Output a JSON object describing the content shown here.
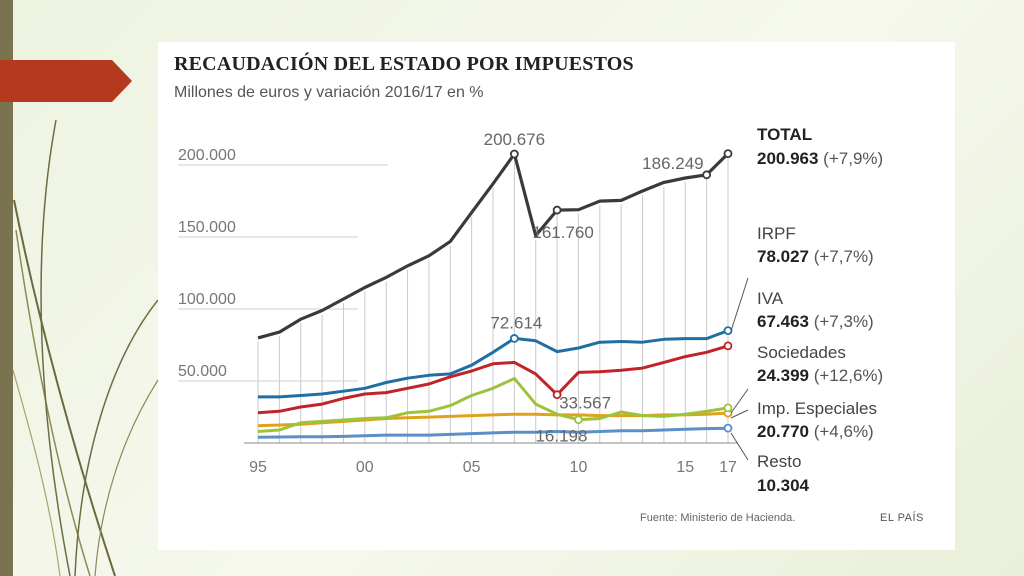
{
  "header": {
    "title": "RECAUDACIÓN DEL ESTADO POR IMPUESTOS",
    "subtitle": "Millones de euros y variación 2016/17 en %"
  },
  "footer": {
    "source": "Fuente: Ministerio de Hacienda.",
    "brand": "EL PAÍS"
  },
  "colors": {
    "total": "#3a3a3a",
    "irpf": "#1f6fa3",
    "iva": "#c0242a",
    "sociedades": "#9cc43a",
    "especiales": "#e0a21b",
    "resto": "#5b8fc7",
    "accent": "#b5391f"
  },
  "chart_data": {
    "type": "line",
    "title": "RECAUDACIÓN DEL ESTADO POR IMPUESTOS",
    "subtitle": "Millones de euros y variación 2016/17 en %",
    "x": [
      1995,
      1996,
      1997,
      1998,
      1999,
      2000,
      2001,
      2002,
      2003,
      2004,
      2005,
      2006,
      2007,
      2008,
      2009,
      2010,
      2011,
      2012,
      2013,
      2014,
      2015,
      2016,
      2017
    ],
    "x_tick_labels": [
      "95",
      "00",
      "05",
      "10",
      "15",
      "17"
    ],
    "x_tick_values": [
      1995,
      2000,
      2005,
      2010,
      2015,
      2017
    ],
    "y_tick_labels": [
      "200.000",
      "150.000",
      "100.000",
      "50.000"
    ],
    "y_tick_values": [
      200000,
      150000,
      100000,
      50000
    ],
    "ylim": [
      0,
      210000
    ],
    "grid": true,
    "series": [
      {
        "key": "total",
        "name": "TOTAL",
        "value_label": "200.963",
        "change_label": "(+7,9%)",
        "values": [
          73000,
          77000,
          86000,
          92000,
          100000,
          108000,
          115000,
          123000,
          130000,
          140000,
          160000,
          180000,
          200676,
          144000,
          161760,
          162000,
          168000,
          168500,
          175000,
          181000,
          184000,
          186249,
          200963
        ]
      },
      {
        "key": "irpf",
        "name": "IRPF",
        "value_label": "78.027",
        "change_label": "(+7,7%)",
        "values": [
          32000,
          32000,
          33000,
          34000,
          36000,
          38000,
          42000,
          45000,
          47000,
          48000,
          54000,
          63000,
          72614,
          71000,
          63500,
          66000,
          70000,
          70500,
          70000,
          72000,
          72500,
          72500,
          78027
        ]
      },
      {
        "key": "iva",
        "name": "IVA",
        "value_label": "67.463",
        "change_label": "(+7,3%)",
        "values": [
          21000,
          22000,
          25000,
          27000,
          31000,
          34000,
          35000,
          38000,
          41000,
          46000,
          50000,
          55000,
          56000,
          48000,
          33567,
          49000,
          49500,
          50500,
          52000,
          56000,
          60000,
          63000,
          67463
        ]
      },
      {
        "key": "sociedades",
        "name": "Sociedades",
        "value_label": "24.399",
        "change_label": "(+12,6%)",
        "values": [
          8000,
          9000,
          14000,
          15000,
          16000,
          17000,
          17500,
          21000,
          22000,
          26000,
          33000,
          38000,
          44800,
          27000,
          20000,
          16198,
          17000,
          21500,
          19000,
          18500,
          20000,
          22000,
          24399
        ]
      },
      {
        "key": "especiales",
        "name": "Imp. Especiales",
        "value_label": "20.770",
        "change_label": "(+4,6%)",
        "values": [
          12000,
          12500,
          13000,
          14000,
          15000,
          16000,
          17000,
          17500,
          18000,
          18500,
          19000,
          19500,
          20000,
          20000,
          19500,
          19500,
          19000,
          19000,
          19000,
          19500,
          19500,
          20000,
          20770
        ]
      },
      {
        "key": "resto",
        "name": "Resto",
        "value_label": "10.304",
        "change_label": "",
        "values": [
          4000,
          4200,
          4300,
          4400,
          4600,
          5000,
          5500,
          5500,
          5500,
          6000,
          6500,
          7000,
          7500,
          7500,
          8000,
          7500,
          8000,
          8500,
          8500,
          9000,
          9500,
          10000,
          10304
        ]
      }
    ],
    "annotations": [
      {
        "series": "total",
        "x": 2007,
        "label": "200.676"
      },
      {
        "series": "total",
        "x": 2009,
        "label": "161.760"
      },
      {
        "series": "total",
        "x": 2016,
        "label": "186.249"
      },
      {
        "series": "irpf",
        "x": 2007,
        "label": "72.614"
      },
      {
        "series": "iva",
        "x": 2009,
        "label": "33.567"
      },
      {
        "series": "sociedades",
        "x": 2010,
        "label": "16.198"
      }
    ]
  }
}
